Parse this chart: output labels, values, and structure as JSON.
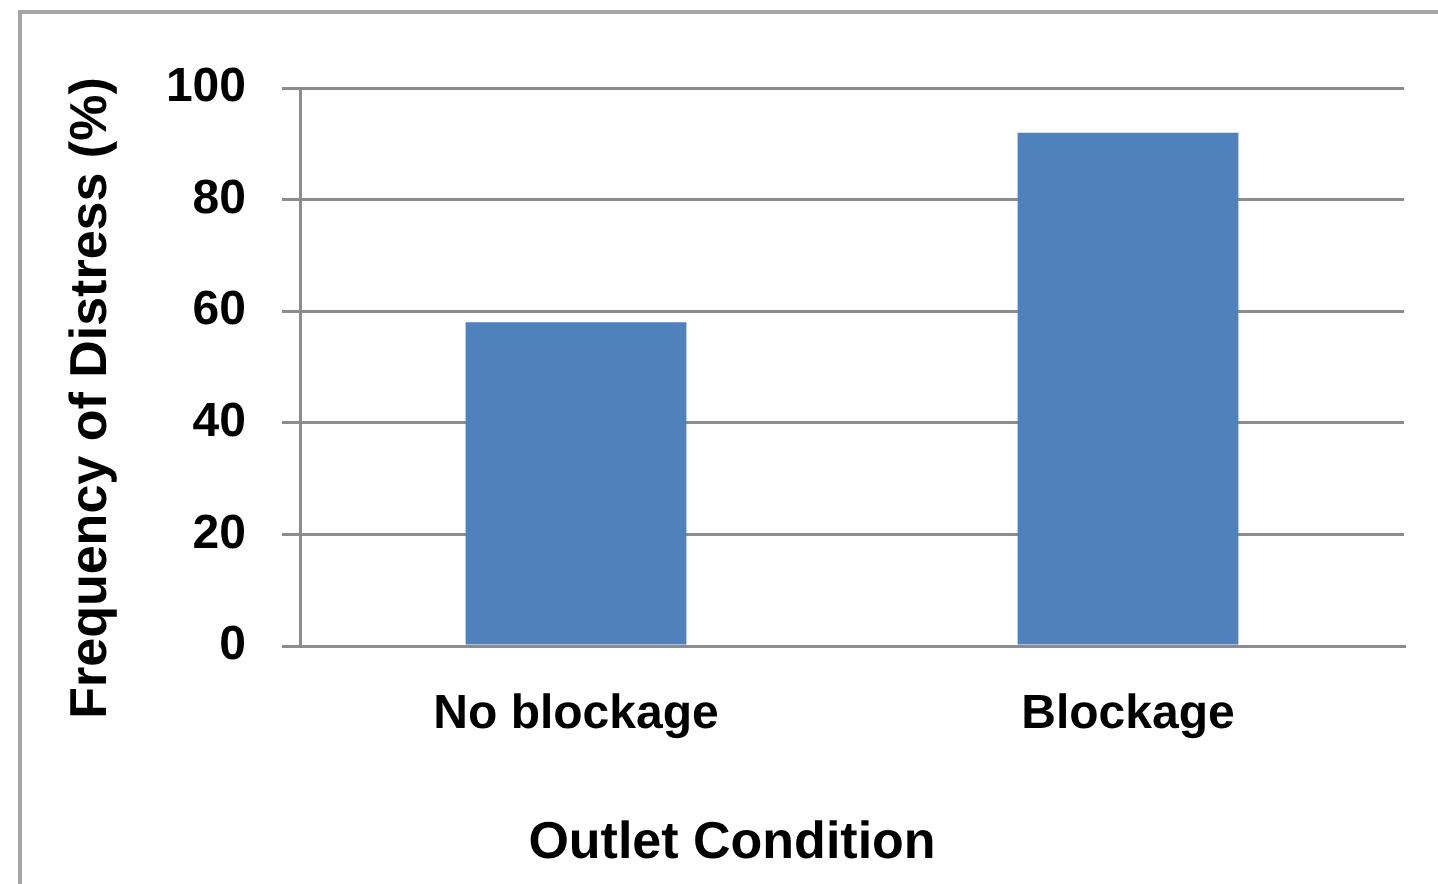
{
  "chart_data": {
    "type": "bar",
    "categories": [
      "No blockage",
      "Blockage"
    ],
    "values": [
      58,
      92
    ],
    "color": "#4f81bd",
    "xlabel": "Outlet Condition",
    "ylabel": "Frequency of Distress (%)",
    "ylim": [
      0,
      100
    ],
    "yticks": [
      0,
      20,
      40,
      60,
      80,
      100
    ],
    "grid": "y"
  }
}
